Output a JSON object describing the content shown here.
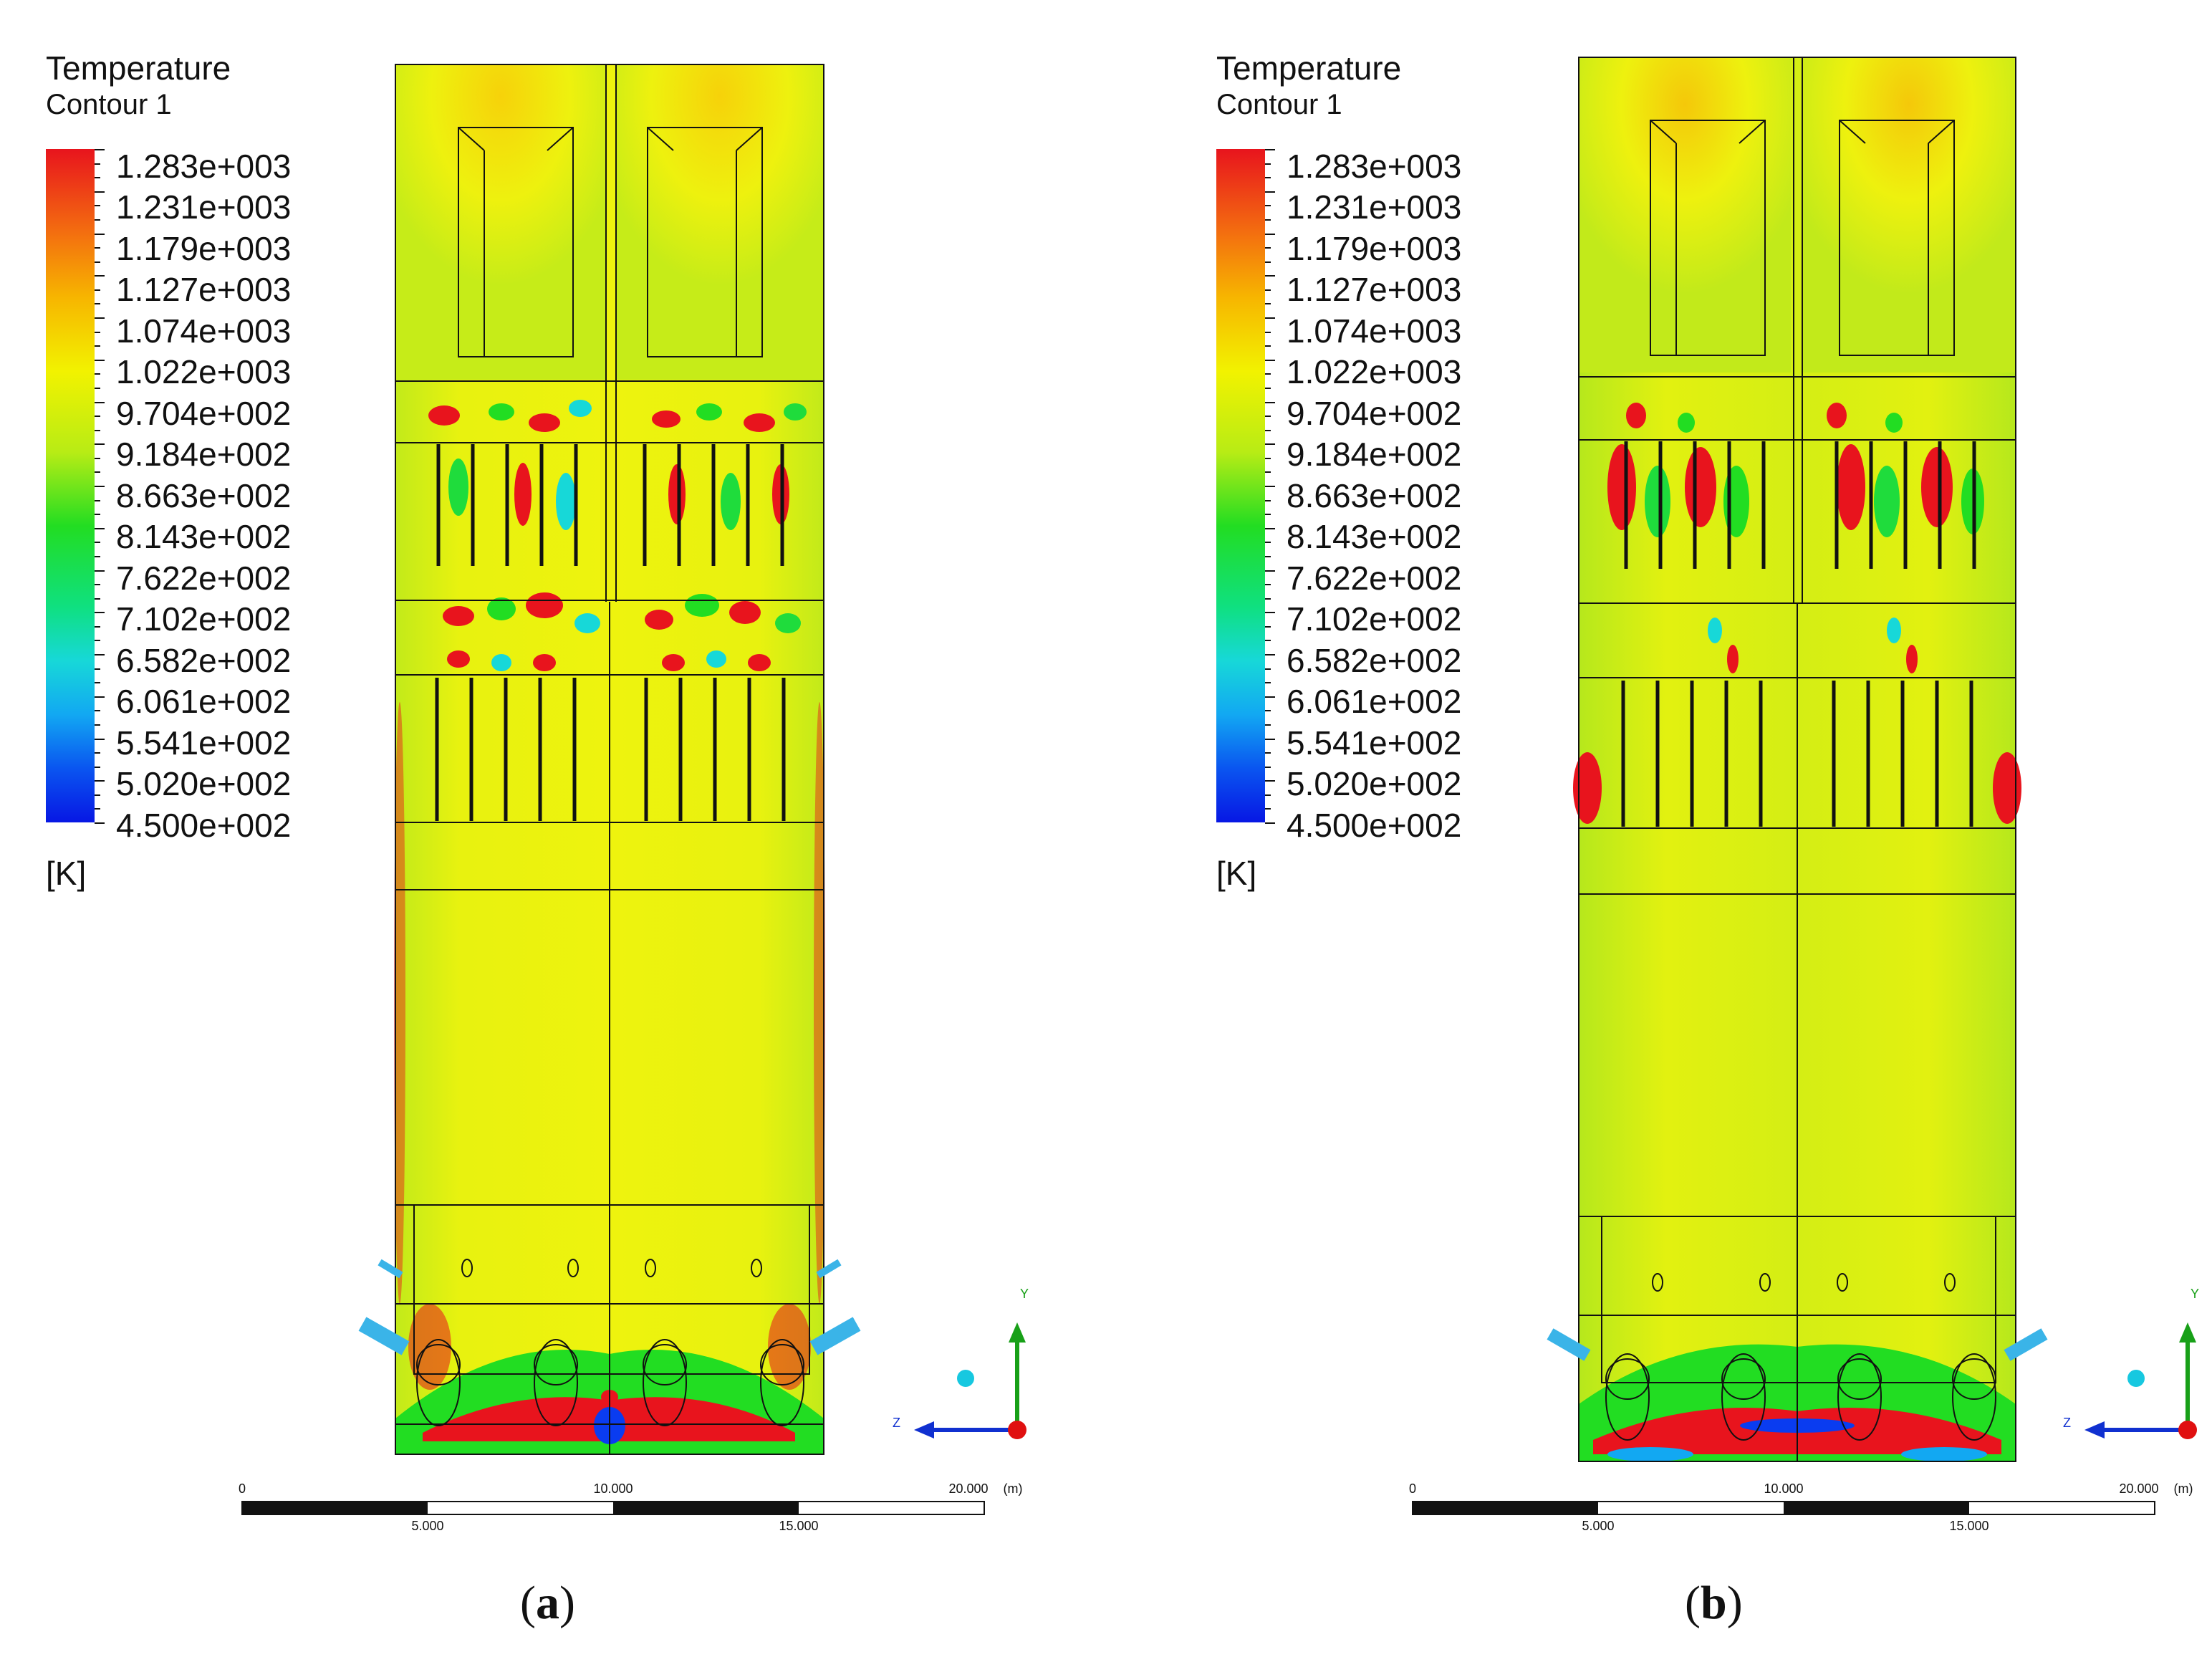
{
  "panels": [
    {
      "id": "a",
      "legend": {
        "title": "Temperature",
        "subtitle": "Contour 1",
        "values": [
          "1.283e+003",
          "1.231e+003",
          "1.179e+003",
          "1.127e+003",
          "1.074e+003",
          "1.022e+003",
          "9.704e+002",
          "9.184e+002",
          "8.663e+002",
          "8.143e+002",
          "7.622e+002",
          "7.102e+002",
          "6.582e+002",
          "6.061e+002",
          "5.541e+002",
          "5.020e+002",
          "4.500e+002"
        ],
        "unit": "[K]"
      },
      "scale_bar": {
        "top_labels": [
          "0",
          "10.000",
          "20.000"
        ],
        "bottom_labels": [
          "5.000",
          "15.000"
        ],
        "unit": "(m)"
      },
      "axes": {
        "y": "Y",
        "z": "Z"
      },
      "caption": {
        "open": "(",
        "letter": "a",
        "close": ")"
      }
    },
    {
      "id": "b",
      "legend": {
        "title": "Temperature",
        "subtitle": "Contour 1",
        "values": [
          "1.283e+003",
          "1.231e+003",
          "1.179e+003",
          "1.127e+003",
          "1.074e+003",
          "1.022e+003",
          "9.704e+002",
          "9.184e+002",
          "8.663e+002",
          "8.143e+002",
          "7.622e+002",
          "7.102e+002",
          "6.582e+002",
          "6.061e+002",
          "5.541e+002",
          "5.020e+002",
          "4.500e+002"
        ],
        "unit": "[K]"
      },
      "scale_bar": {
        "top_labels": [
          "0",
          "10.000",
          "20.000"
        ],
        "bottom_labels": [
          "5.000",
          "15.000"
        ],
        "unit": "(m)"
      },
      "axes": {
        "y": "Y",
        "z": "Z"
      },
      "caption": {
        "open": "(",
        "letter": "b",
        "close": ")"
      }
    }
  ],
  "colors": {
    "field_yellow": "#ecf20e",
    "field_green": "#baea1c",
    "hot_red": "#e8141d",
    "hot_orange": "#f39a12",
    "cool_green": "#1fdc3c",
    "cool_cyan": "#17d8d8",
    "cold_blue": "#0a3cf0",
    "pipe_blue": "#3ab4e8",
    "outline": "#111111"
  }
}
